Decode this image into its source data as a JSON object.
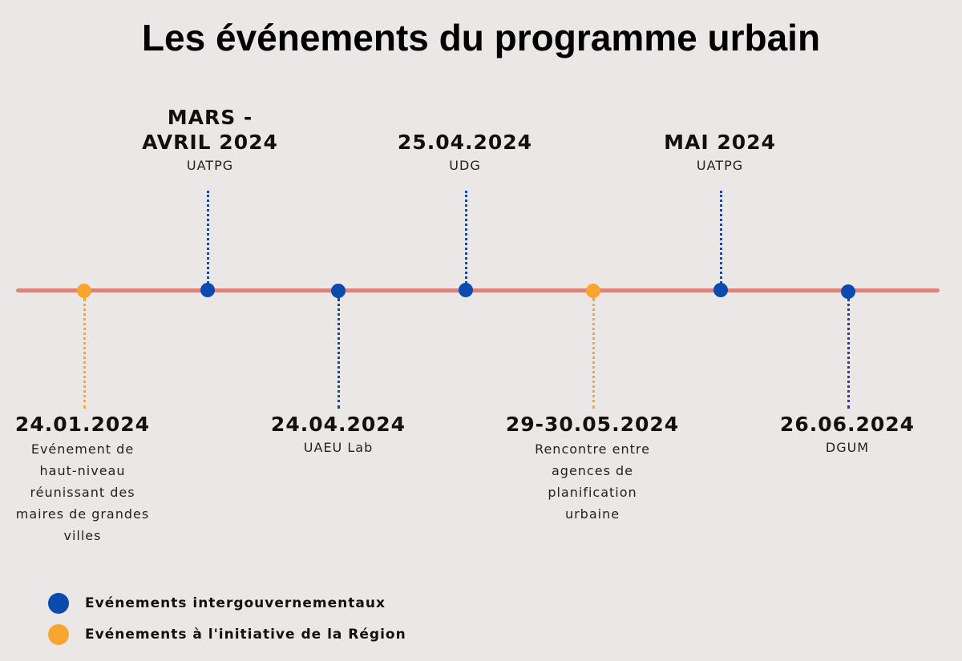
{
  "title": "Les événements du programme urbain",
  "colors": {
    "background": "#ebe7e6",
    "axis": "#d9837a",
    "intergovernmental": "#0b4bb0",
    "region": "#f9a630"
  },
  "legend": [
    {
      "label": "Evénements intergouvernementaux",
      "category": "intergovernmental"
    },
    {
      "label": "Evénements à l'initiative de la Région",
      "category": "region"
    }
  ],
  "events": [
    {
      "date": "24.01.2024",
      "org": "",
      "description": "Evénement de\nhaut-niveau\nréunissant des\nmaires de grandes\nvilles",
      "category": "region",
      "side": "below"
    },
    {
      "date": "MARS -\nAVRIL 2024",
      "org": "UATPG",
      "description": "",
      "category": "intergovernmental",
      "side": "above"
    },
    {
      "date": "24.04.2024",
      "org": "UAEU Lab",
      "description": "",
      "category": "intergovernmental",
      "side": "below"
    },
    {
      "date": "25.04.2024",
      "org": "UDG",
      "description": "",
      "category": "intergovernmental",
      "side": "above"
    },
    {
      "date": "29-30.05.2024",
      "org": "",
      "description": "Rencontre entre\nagences de\nplanification\nurbaine",
      "category": "region",
      "side": "below"
    },
    {
      "date": "MAI 2024",
      "org": "UATPG",
      "description": "",
      "category": "intergovernmental",
      "side": "above"
    },
    {
      "date": "26.06.2024",
      "org": "DGUM",
      "description": "",
      "category": "intergovernmental",
      "side": "below"
    }
  ]
}
